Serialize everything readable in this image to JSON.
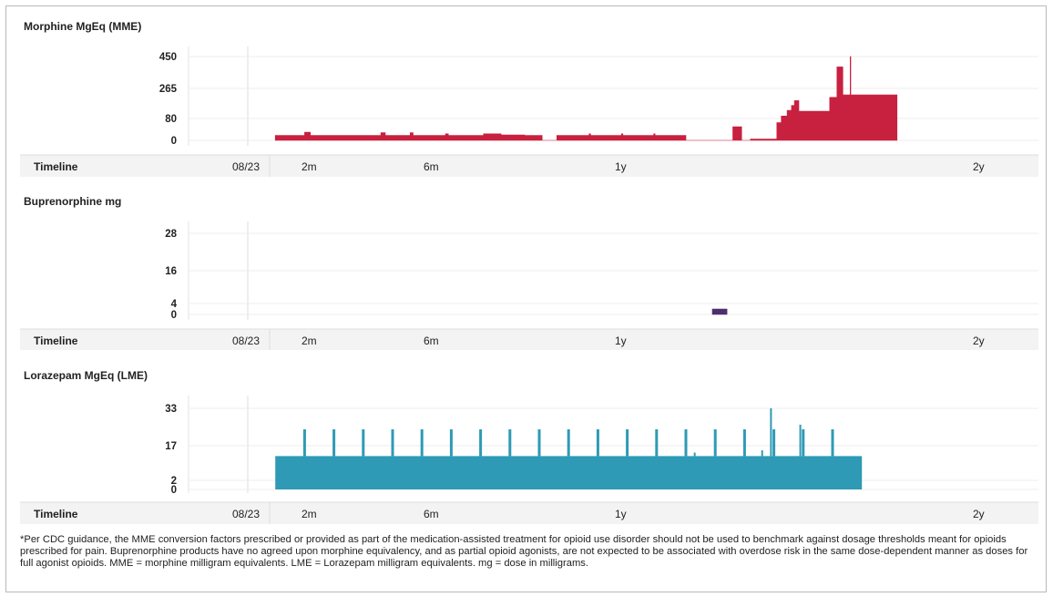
{
  "footnote": "*Per CDC guidance, the MME conversion factors prescribed or provided as part of the medication-assisted treatment for opioid use disorder should not be used to benchmark against dosage thresholds meant for opioids prescribed for pain. Buprenorphine products have no agreed upon morphine equivalency, and as partial opioid agonists, are not expected to be associated with overdose risk in the same dose-dependent manner as doses for full agonist opioids. MME = morphine milligram equivalents. LME = Lorazepam milligram equivalents. mg = dose in milligrams.",
  "chart_data": [
    {
      "type": "area",
      "title": "Morphine MgEq (MME)",
      "color": "#c8203f",
      "yticks": [
        0,
        80,
        265,
        450
      ],
      "ylim": [
        0,
        450
      ],
      "timeline_label": "Timeline",
      "timeline_ticks": [
        "08/23",
        "2m",
        "6m",
        "1y",
        "2y"
      ],
      "series": [
        {
          "x_unit": "months",
          "points": [
            [
              1.0,
              0
            ],
            [
              1.0,
              18
            ],
            [
              2.0,
              18
            ],
            [
              2.0,
              30
            ],
            [
              2.2,
              30
            ],
            [
              2.2,
              18
            ],
            [
              4.6,
              18
            ],
            [
              4.6,
              28
            ],
            [
              4.75,
              28
            ],
            [
              4.75,
              18
            ],
            [
              5.6,
              18
            ],
            [
              5.6,
              28
            ],
            [
              5.7,
              28
            ],
            [
              5.7,
              18
            ],
            [
              6.8,
              18
            ],
            [
              6.8,
              24
            ],
            [
              6.9,
              24
            ],
            [
              6.9,
              18
            ],
            [
              8.1,
              18
            ],
            [
              8.1,
              24
            ],
            [
              8.7,
              24
            ],
            [
              8.7,
              20
            ],
            [
              9.5,
              20
            ],
            [
              9.5,
              18
            ],
            [
              10.1,
              18
            ],
            [
              10.1,
              0
            ],
            [
              10.6,
              0
            ],
            [
              10.6,
              18
            ],
            [
              11.7,
              18
            ],
            [
              11.7,
              24
            ],
            [
              11.75,
              24
            ],
            [
              11.75,
              18
            ],
            [
              12.8,
              18
            ],
            [
              12.8,
              24
            ],
            [
              12.85,
              24
            ],
            [
              12.85,
              18
            ],
            [
              13.9,
              18
            ],
            [
              13.9,
              24
            ],
            [
              13.95,
              24
            ],
            [
              13.95,
              18
            ],
            [
              15.0,
              18
            ],
            [
              15.0,
              0
            ],
            [
              16.6,
              0
            ],
            [
              16.6,
              50
            ],
            [
              16.9,
              50
            ],
            [
              16.9,
              0
            ],
            [
              17.2,
              0
            ],
            [
              17.2,
              5
            ],
            [
              18.1,
              5
            ],
            [
              18.1,
              65
            ],
            [
              18.25,
              65
            ],
            [
              18.25,
              95
            ],
            [
              18.45,
              95
            ],
            [
              18.45,
              130
            ],
            [
              18.6,
              130
            ],
            [
              18.6,
              160
            ],
            [
              18.7,
              160
            ],
            [
              18.7,
              190
            ],
            [
              18.85,
              190
            ],
            [
              18.85,
              125
            ],
            [
              19.9,
              125
            ],
            [
              19.9,
              210
            ],
            [
              20.0,
              210
            ],
            [
              20.0,
              210
            ],
            [
              20.15,
              210
            ],
            [
              20.15,
              390
            ],
            [
              20.35,
              390
            ],
            [
              20.35,
              225
            ],
            [
              20.6,
              225
            ],
            [
              20.6,
              450
            ],
            [
              20.62,
              450
            ],
            [
              20.62,
              225
            ],
            [
              22.2,
              225
            ],
            [
              22.2,
              0
            ]
          ]
        }
      ]
    },
    {
      "type": "area",
      "title": "Buprenorphine mg",
      "color": "#4f2e6e",
      "yticks": [
        0,
        4,
        16,
        28
      ],
      "ylim": [
        0,
        28
      ],
      "timeline_label": "Timeline",
      "timeline_ticks": [
        "08/23",
        "2m",
        "6m",
        "1y",
        "2y"
      ],
      "series": [
        {
          "x_unit": "months",
          "points": [
            [
              15.9,
              0
            ],
            [
              15.9,
              2
            ],
            [
              16.4,
              2
            ],
            [
              16.4,
              0
            ]
          ]
        }
      ]
    },
    {
      "type": "area",
      "title": "Lorazepam MgEq (LME)",
      "color": "#2e9ab5",
      "yticks": [
        0,
        2,
        17,
        33
      ],
      "ylim": [
        0,
        33
      ],
      "timeline_label": "Timeline",
      "timeline_ticks": [
        "08/23",
        "2m",
        "6m",
        "1y",
        "2y"
      ],
      "series": [
        {
          "x_unit": "months",
          "baseline": 12.5,
          "start": 1.0,
          "end": 21.0,
          "spike_value": 24,
          "spikes": [
            2.0,
            3.0,
            4.0,
            5.0,
            6.0,
            7.0,
            8.0,
            9.0,
            10.0,
            11.0,
            12.0,
            13.0,
            14.0,
            15.0,
            16.0,
            17.0,
            18.0,
            19.0,
            20.0
          ],
          "extra_spikes": [
            [
              17.9,
              33
            ],
            [
              18.9,
              26
            ],
            [
              15.3,
              14
            ],
            [
              17.6,
              15
            ]
          ]
        }
      ]
    }
  ]
}
